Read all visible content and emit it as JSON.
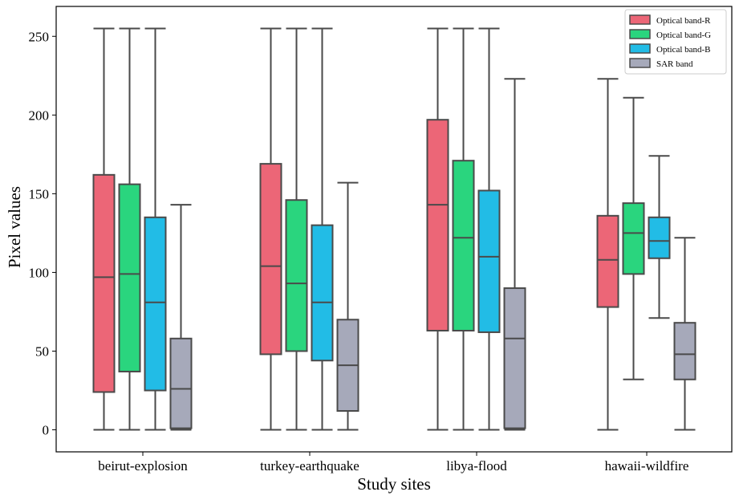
{
  "chart_data": {
    "type": "boxplot",
    "title": "",
    "xlabel": "Study sites",
    "ylabel": "Pixel values",
    "ylim": [
      -14,
      269
    ],
    "yticks": [
      0,
      50,
      100,
      150,
      200,
      250
    ],
    "categories": [
      "beirut-explosion",
      "turkey-earthquake",
      "libya-flood",
      "hawaii-wildfire"
    ],
    "legend_position": "top-right",
    "series": [
      {
        "name": "Optical band-R",
        "color": "#ec6677",
        "boxes": [
          {
            "whisker_low": 0,
            "q1": 24,
            "median": 97,
            "q3": 162,
            "whisker_high": 255
          },
          {
            "whisker_low": 0,
            "q1": 48,
            "median": 104,
            "q3": 169,
            "whisker_high": 255
          },
          {
            "whisker_low": 0,
            "q1": 63,
            "median": 143,
            "q3": 197,
            "whisker_high": 255
          },
          {
            "whisker_low": 0,
            "q1": 78,
            "median": 108,
            "q3": 136,
            "whisker_high": 223
          }
        ]
      },
      {
        "name": "Optical band-G",
        "color": "#2ad57e",
        "boxes": [
          {
            "whisker_low": 0,
            "q1": 37,
            "median": 99,
            "q3": 156,
            "whisker_high": 255
          },
          {
            "whisker_low": 0,
            "q1": 50,
            "median": 93,
            "q3": 146,
            "whisker_high": 255
          },
          {
            "whisker_low": 0,
            "q1": 63,
            "median": 122,
            "q3": 171,
            "whisker_high": 255
          },
          {
            "whisker_low": 32,
            "q1": 99,
            "median": 125,
            "q3": 144,
            "whisker_high": 211
          }
        ]
      },
      {
        "name": "Optical band-B",
        "color": "#22bce6",
        "boxes": [
          {
            "whisker_low": 0,
            "q1": 25,
            "median": 81,
            "q3": 135,
            "whisker_high": 255
          },
          {
            "whisker_low": 0,
            "q1": 44,
            "median": 81,
            "q3": 130,
            "whisker_high": 255
          },
          {
            "whisker_low": 0,
            "q1": 62,
            "median": 110,
            "q3": 152,
            "whisker_high": 255
          },
          {
            "whisker_low": 71,
            "q1": 109,
            "median": 120,
            "q3": 135,
            "whisker_high": 174
          }
        ]
      },
      {
        "name": "SAR band",
        "color": "#a6a9ba",
        "boxes": [
          {
            "whisker_low": 0,
            "q1": 1,
            "median": 26,
            "q3": 58,
            "whisker_high": 143
          },
          {
            "whisker_low": 0,
            "q1": 12,
            "median": 41,
            "q3": 70,
            "whisker_high": 157
          },
          {
            "whisker_low": 0,
            "q1": 1,
            "median": 58,
            "q3": 90,
            "whisker_high": 223
          },
          {
            "whisker_low": 0,
            "q1": 32,
            "median": 48,
            "q3": 68,
            "whisker_high": 122
          }
        ]
      }
    ]
  }
}
